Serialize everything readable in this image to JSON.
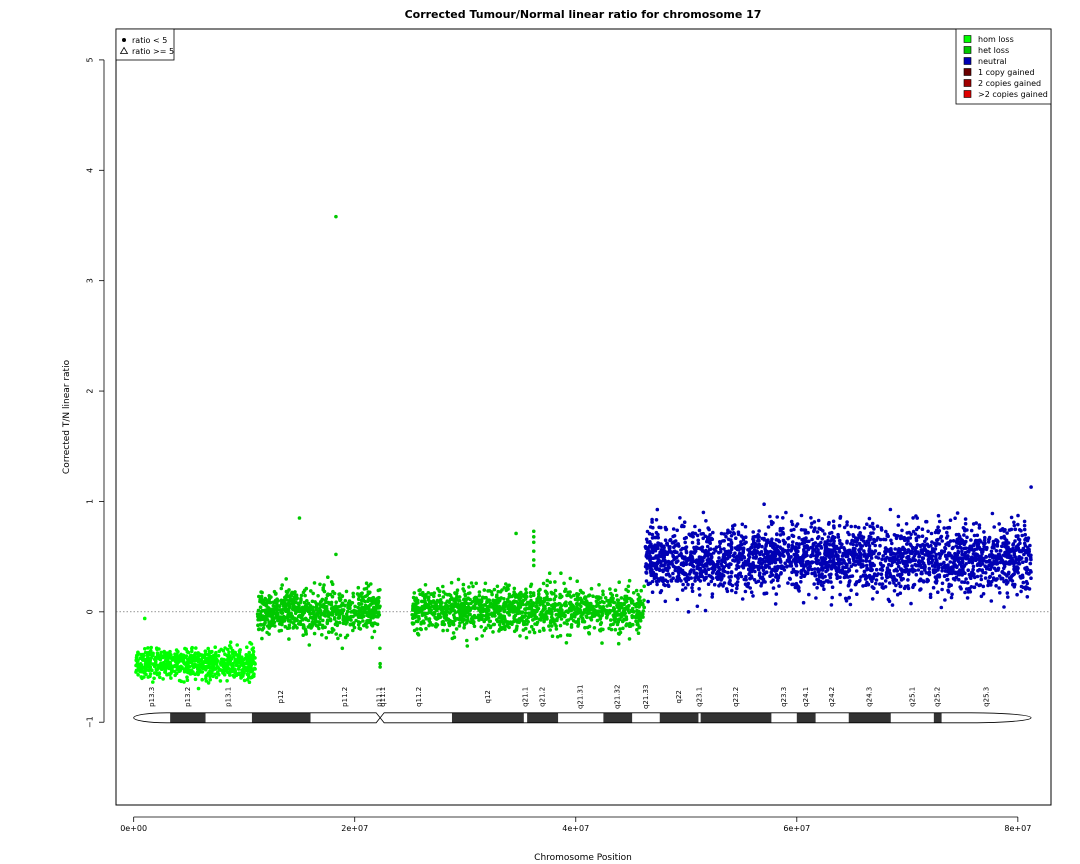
{
  "chart_data": {
    "type": "scatter",
    "title": "Corrected Tumour/Normal linear ratio for chromosome  17",
    "xlabel": "Chromosome Position",
    "ylabel": "Corrected T/N linear ratio",
    "xlim": [
      -1600000.0,
      83000000.0
    ],
    "ylim": [
      -1.75,
      5.28
    ],
    "x_ticks": [
      {
        "value": 0,
        "label": "0e+00"
      },
      {
        "value": 20000000,
        "label": "2e+07"
      },
      {
        "value": 40000000,
        "label": "4e+07"
      },
      {
        "value": 60000000,
        "label": "6e+07"
      },
      {
        "value": 80000000,
        "label": "8e+07"
      }
    ],
    "y_ticks": [
      {
        "value": -1,
        "label": "−1"
      },
      {
        "value": 0,
        "label": "0"
      },
      {
        "value": 1,
        "label": "1"
      },
      {
        "value": 2,
        "label": "2"
      },
      {
        "value": 3,
        "label": "3"
      },
      {
        "value": 4,
        "label": "4"
      },
      {
        "value": 5,
        "label": "5"
      }
    ],
    "reference_line": {
      "y": 0,
      "style": "dotted"
    },
    "segments": [
      {
        "state": "hom loss",
        "x_start": 200000,
        "x_end": 11000000,
        "mean": -0.47,
        "spread": 0.07,
        "count": 700
      },
      {
        "state": "het loss",
        "x_start": 11200000,
        "x_end": 22300000,
        "mean": 0.0,
        "spread": 0.1,
        "count": 750
      },
      {
        "state": "het loss",
        "x_start": 25200000,
        "x_end": 46200000,
        "mean": 0.02,
        "spread": 0.1,
        "count": 1300
      },
      {
        "state": "neutral",
        "x_start": 46300000,
        "x_end": 81200000,
        "mean": 0.48,
        "spread": 0.15,
        "count": 2600
      }
    ],
    "outliers": [
      {
        "state": "het loss",
        "x": 18300000,
        "y": 3.58
      },
      {
        "state": "het loss",
        "x": 15000000,
        "y": 0.85
      },
      {
        "state": "het loss",
        "x": 18300000,
        "y": 0.52
      },
      {
        "state": "het loss",
        "x": 34600000,
        "y": 0.71
      },
      {
        "state": "het loss",
        "x": 36200000,
        "y": 0.73
      },
      {
        "state": "het loss",
        "x": 36200000,
        "y": 0.68
      },
      {
        "state": "het loss",
        "x": 36200000,
        "y": 0.63
      },
      {
        "state": "het loss",
        "x": 36200000,
        "y": 0.55
      },
      {
        "state": "het loss",
        "x": 36200000,
        "y": 0.47
      },
      {
        "state": "het loss",
        "x": 36200000,
        "y": 0.42
      },
      {
        "state": "hom loss",
        "x": 1000000,
        "y": -0.06
      },
      {
        "state": "het loss",
        "x": 22300000,
        "y": -0.5
      },
      {
        "state": "het loss",
        "x": 22300000,
        "y": -0.47
      },
      {
        "state": "neutral",
        "x": 81200000,
        "y": 1.13
      },
      {
        "state": "neutral",
        "x": 50200000,
        "y": 0.0
      },
      {
        "state": "neutral",
        "x": 51000000,
        "y": 0.05
      }
    ],
    "colors": {
      "hom loss": "#00ff00",
      "het loss": "#00c800",
      "neutral": "#0000b4",
      "1 copy gained": "#6a0000",
      "2 copies gained": "#a00000",
      ">2 copies gained": "#e00000"
    },
    "legend_shape": {
      "placement": "top-left",
      "entries": [
        "ratio < 5",
        "ratio >= 5"
      ]
    },
    "legend_state": {
      "placement": "top-right",
      "entries": [
        "hom loss",
        "het loss",
        "neutral",
        "1 copy gained",
        "2 copies gained",
        ">2 copies gained"
      ]
    },
    "ideogram": {
      "y": -0.96,
      "chrom_start": 0,
      "chrom_end": 81200000,
      "centromere": 22300000,
      "bands": [
        {
          "name": "p13.3",
          "start": 0,
          "end": 3300000,
          "stain": "gneg"
        },
        {
          "name": "p13.2",
          "start": 3300000,
          "end": 6500000,
          "stain": "gpos"
        },
        {
          "name": "p13.1",
          "start": 6500000,
          "end": 10700000,
          "stain": "gneg"
        },
        {
          "name": "p12",
          "start": 10700000,
          "end": 16000000,
          "stain": "gpos"
        },
        {
          "name": "p11.2",
          "start": 16000000,
          "end": 22200000,
          "stain": "gneg"
        },
        {
          "name": "p11.1",
          "start": 22200000,
          "end": 22300000,
          "stain": "acen"
        },
        {
          "name": "q11.1",
          "start": 22300000,
          "end": 22800000,
          "stain": "acen"
        },
        {
          "name": "q11.2",
          "start": 22800000,
          "end": 28800000,
          "stain": "gneg"
        },
        {
          "name": "q12",
          "start": 28800000,
          "end": 35300000,
          "stain": "gpos"
        },
        {
          "name": "q21.1",
          "start": 35300000,
          "end": 35600000,
          "stain": "gneg"
        },
        {
          "name": "q21.2",
          "start": 35600000,
          "end": 38400000,
          "stain": "gpos"
        },
        {
          "name": "q21.31",
          "start": 38400000,
          "end": 42500000,
          "stain": "gneg"
        },
        {
          "name": "q21.32",
          "start": 42500000,
          "end": 45100000,
          "stain": "gpos"
        },
        {
          "name": "q21.33",
          "start": 45100000,
          "end": 47600000,
          "stain": "gneg"
        },
        {
          "name": "q22",
          "start": 47600000,
          "end": 51100000,
          "stain": "gpos"
        },
        {
          "name": "q23.1",
          "start": 51100000,
          "end": 51300000,
          "stain": "gneg"
        },
        {
          "name": "q23.2",
          "start": 51300000,
          "end": 57700000,
          "stain": "gpos"
        },
        {
          "name": "q23.3",
          "start": 57700000,
          "end": 60000000,
          "stain": "gneg"
        },
        {
          "name": "q24.1",
          "start": 60000000,
          "end": 61700000,
          "stain": "gpos"
        },
        {
          "name": "q24.2",
          "start": 61700000,
          "end": 64700000,
          "stain": "gneg"
        },
        {
          "name": "q24.3",
          "start": 64700000,
          "end": 68500000,
          "stain": "gpos"
        },
        {
          "name": "q25.1",
          "start": 68500000,
          "end": 72400000,
          "stain": "gneg"
        },
        {
          "name": "q25.2",
          "start": 72400000,
          "end": 73100000,
          "stain": "gpos"
        },
        {
          "name": "q25.3",
          "start": 73100000,
          "end": 81200000,
          "stain": "gneg"
        }
      ]
    }
  }
}
